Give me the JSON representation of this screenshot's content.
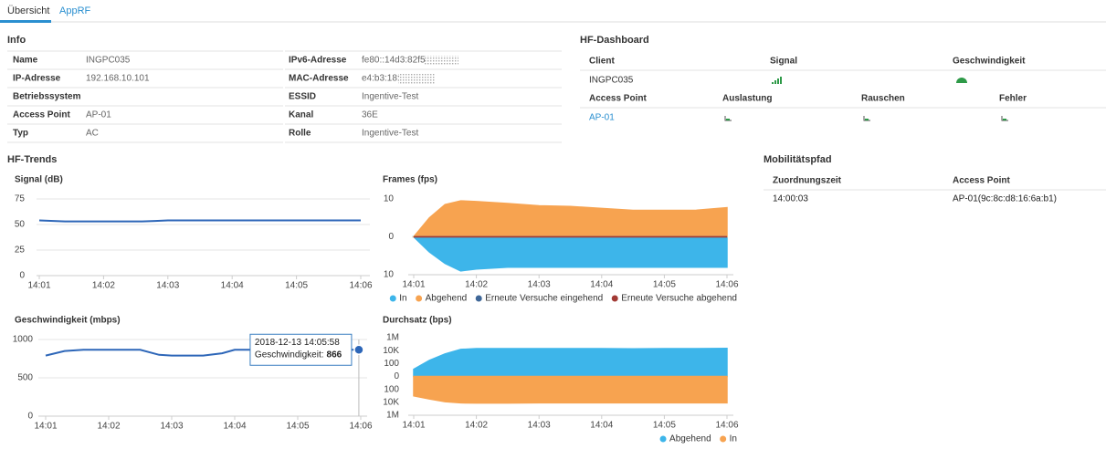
{
  "tabs": [
    "Übersicht",
    "AppRF"
  ],
  "info": {
    "title": "Info",
    "rows": [
      [
        {
          "label": "Name",
          "value": "INGPC035"
        },
        {
          "label": "IPv6-Adresse",
          "value": "fe80::14d3:82f5"
        }
      ],
      [
        {
          "label": "IP-Adresse",
          "value": "192.168.10.101"
        },
        {
          "label": "MAC-Adresse",
          "value": "e4:b3:18:"
        }
      ],
      [
        {
          "label": "Betriebssystem"
        },
        {
          "label": "ESSID",
          "value": "Ingentive-Test"
        }
      ],
      [
        {
          "label": "Access Point",
          "value": "AP-01"
        },
        {
          "label": "Kanal",
          "value": "36E"
        }
      ],
      [
        {
          "label": "Typ",
          "value": "AC"
        },
        {
          "label": "Rolle",
          "value": "Ingentive-Test"
        }
      ]
    ]
  },
  "hf_dashboard": {
    "title": "HF-Dashboard",
    "client_headers": [
      "Client",
      "Signal",
      "Geschwindigkeit"
    ],
    "client": "INGPC035",
    "ap_headers": [
      "Access Point",
      "Auslastung",
      "Rauschen",
      "Fehler"
    ],
    "access_point": "AP-01"
  },
  "hf_trends": {
    "title": "HF-Trends"
  },
  "mobility": {
    "title": "Mobilitätspfad",
    "headers": [
      "Zuordnungszeit",
      "Access Point"
    ],
    "rows": [
      [
        "14:00:03",
        "AP-01(9c:8c:d8:16:6a:b1)"
      ]
    ]
  },
  "chart_data": [
    {
      "type": "line",
      "title": "Signal (dB)",
      "color": "#2d66b8",
      "grid": true,
      "x": [
        841,
        841.4,
        842,
        842.6,
        842.8,
        843,
        844,
        845,
        846
      ],
      "values": [
        54,
        53,
        53,
        53,
        53.5,
        54,
        54,
        54,
        54
      ],
      "xlim": [
        841,
        846
      ],
      "xticks": [
        {
          "value": 841,
          "label": "14:01"
        },
        {
          "value": 842,
          "label": "14:02"
        },
        {
          "value": 843,
          "label": "14:03"
        },
        {
          "value": 844,
          "label": "14:04"
        },
        {
          "value": 845,
          "label": "14:05"
        },
        {
          "value": 846,
          "label": "14:06"
        }
      ],
      "ylim": [
        0,
        75
      ],
      "yticks": [
        0,
        25,
        50,
        75
      ]
    },
    {
      "type": "area",
      "title": "Frames (fps)",
      "grid": false,
      "legend": "bottom-right",
      "x": [
        841,
        841.25,
        841.5,
        841.75,
        842,
        842.5,
        843,
        843.5,
        844,
        844.5,
        845,
        845.5,
        846
      ],
      "series": [
        {
          "name": "In",
          "color": "#3db5ea",
          "values": [
            0,
            -4,
            -7,
            -9,
            -8.5,
            -8,
            -8,
            -8,
            -8,
            -8,
            -8,
            -8,
            -8
          ]
        },
        {
          "name": "Abgehend",
          "color": "#f7a350",
          "values": [
            0,
            5,
            8.5,
            9.5,
            9.3,
            8.8,
            8.2,
            8,
            7.5,
            7,
            7,
            7,
            7.7
          ]
        },
        {
          "name": "Erneute Versuche eingehend",
          "color": "#3f6798",
          "values": [
            0,
            0,
            0,
            0,
            0,
            0,
            0,
            0,
            0,
            0,
            0,
            0,
            0
          ]
        },
        {
          "name": "Erneute Versuche abgehend",
          "color": "#a23a35",
          "values": [
            0,
            0,
            0,
            0,
            0,
            0,
            0,
            0,
            0,
            0,
            0,
            0,
            0
          ]
        }
      ],
      "xlim": [
        841,
        846
      ],
      "xticks": [
        {
          "value": 841,
          "label": "14:01"
        },
        {
          "value": 842,
          "label": "14:02"
        },
        {
          "value": 843,
          "label": "14:03"
        },
        {
          "value": 844,
          "label": "14:04"
        },
        {
          "value": 845,
          "label": "14:05"
        },
        {
          "value": 846,
          "label": "14:06"
        }
      ],
      "ylim": [
        -10,
        10
      ],
      "yticks": [
        10,
        0,
        {
          "value": -10,
          "label": "10"
        }
      ]
    },
    {
      "type": "line",
      "title": "Geschwindigkeit (mbps)",
      "color": "#2d66b8",
      "grid": true,
      "x": [
        841,
        841.3,
        841.6,
        842,
        842.5,
        842.8,
        843,
        843.5,
        843.8,
        844,
        845,
        845.97
      ],
      "values": [
        790,
        850,
        866,
        866,
        866,
        800,
        790,
        790,
        820,
        866,
        866,
        866
      ],
      "annotation": {
        "date": "2018-12-13 14:05:58",
        "label": "Geschwindigkeit:",
        "x": 845.97,
        "value": 866
      },
      "xlim": [
        841,
        846
      ],
      "xticks": [
        {
          "value": 841,
          "label": "14:01"
        },
        {
          "value": 842,
          "label": "14:02"
        },
        {
          "value": 843,
          "label": "14:03"
        },
        {
          "value": 844,
          "label": "14:04"
        },
        {
          "value": 845,
          "label": "14:05"
        },
        {
          "value": 846,
          "label": "14:06"
        }
      ],
      "ylim": [
        0,
        1000
      ],
      "yticks": [
        0,
        500,
        1000
      ]
    },
    {
      "type": "area",
      "title": "Durchsatz (bps)",
      "grid": false,
      "legend": "bottom-right",
      "yscale": "symlog",
      "x": [
        841,
        841.25,
        841.5,
        841.75,
        842,
        842.5,
        843,
        843.5,
        844,
        844.5,
        845,
        845.5,
        846
      ],
      "series": [
        {
          "name": "Abgehend",
          "color": "#3db5ea",
          "values": [
            12,
            300,
            3000,
            15000,
            20000,
            20000,
            20000,
            20000,
            20000,
            19000,
            20000,
            20000,
            22000
          ]
        },
        {
          "name": "In",
          "color": "#f7a350",
          "values": [
            -1000,
            -3000,
            -8000,
            -12000,
            -13000,
            -13000,
            -12000,
            -12000,
            -12000,
            -12000,
            -12000,
            -12000,
            -12000
          ]
        }
      ],
      "xlim": [
        841,
        846
      ],
      "xticks": [
        {
          "value": 841,
          "label": "14:01"
        },
        {
          "value": 842,
          "label": "14:02"
        },
        {
          "value": 843,
          "label": "14:03"
        },
        {
          "value": 844,
          "label": "14:04"
        },
        {
          "value": 845,
          "label": "14:05"
        },
        {
          "value": 846,
          "label": "14:06"
        }
      ],
      "ylim": [
        -1000000,
        1000000
      ],
      "yticks": [
        {
          "value": 1000000,
          "label": "1M"
        },
        {
          "value": 10000,
          "label": "10K"
        },
        100,
        0,
        {
          "value": -100,
          "label": "100"
        },
        {
          "value": -10000,
          "label": "10K"
        },
        {
          "value": -1000000,
          "label": "1M"
        }
      ]
    }
  ]
}
